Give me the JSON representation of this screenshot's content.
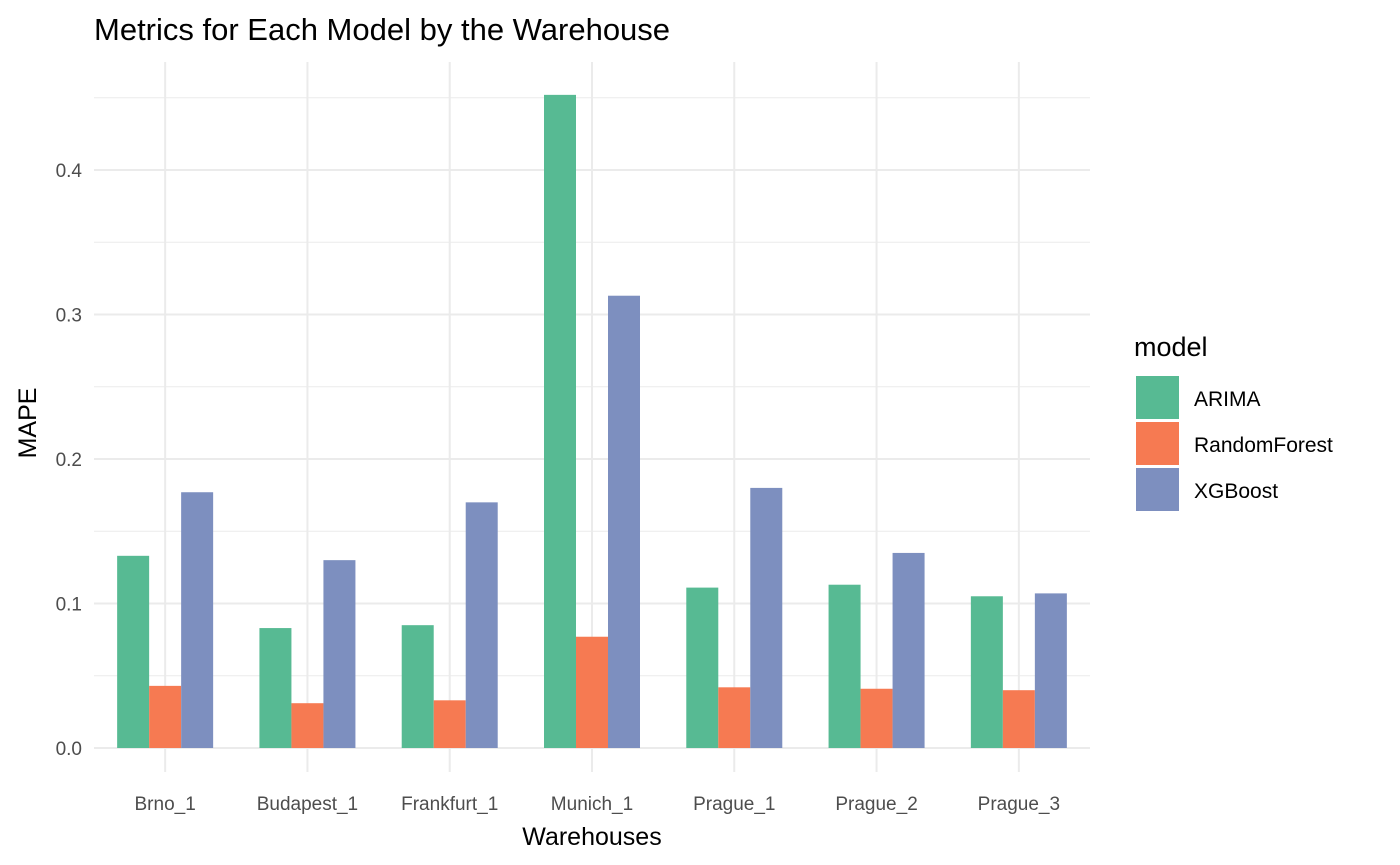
{
  "chart_data": {
    "type": "bar",
    "title": "Metrics for Each Model by the Warehouse",
    "xlabel": "Warehouses",
    "ylabel": "MAPE",
    "categories": [
      "Brno_1",
      "Budapest_1",
      "Frankfurt_1",
      "Munich_1",
      "Prague_1",
      "Prague_2",
      "Prague_3"
    ],
    "series": [
      {
        "name": "ARIMA",
        "color": "#57BA93",
        "values": [
          0.133,
          0.083,
          0.085,
          0.452,
          0.111,
          0.113,
          0.105
        ]
      },
      {
        "name": "RandomForest",
        "color": "#F67A52",
        "values": [
          0.043,
          0.031,
          0.033,
          0.077,
          0.042,
          0.041,
          0.04
        ]
      },
      {
        "name": "XGBoost",
        "color": "#7D8FBF",
        "values": [
          0.177,
          0.13,
          0.17,
          0.313,
          0.18,
          0.135,
          0.107
        ]
      }
    ],
    "yticks": [
      "0.0",
      "0.1",
      "0.2",
      "0.3",
      "0.4"
    ],
    "ylim": [
      0,
      0.4745
    ],
    "grid": true,
    "legend": {
      "title": "model",
      "position": "right"
    }
  }
}
